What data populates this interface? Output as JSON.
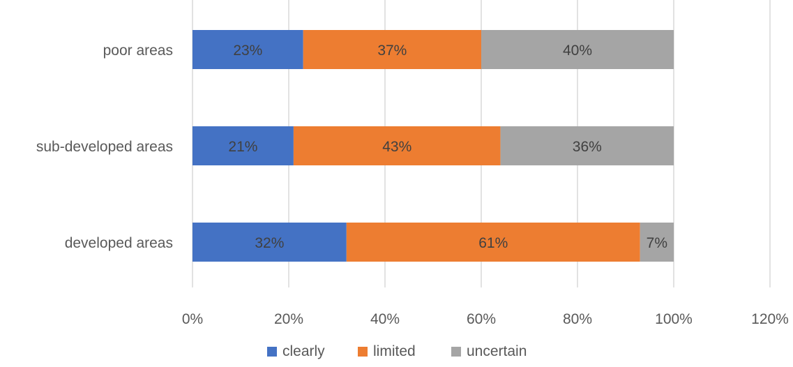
{
  "chart_data": {
    "type": "bar",
    "orientation": "horizontal",
    "stacked": true,
    "categories": [
      "poor areas",
      "sub-developed areas",
      "developed areas"
    ],
    "series": [
      {
        "name": "clearly",
        "color": "#4472C4",
        "values": [
          23,
          21,
          32
        ],
        "labels": [
          "23%",
          "21%",
          "32%"
        ]
      },
      {
        "name": "limited",
        "color": "#ED7D31",
        "values": [
          37,
          43,
          61
        ],
        "labels": [
          "37%",
          "43%",
          "61%"
        ]
      },
      {
        "name": "uncertain",
        "color": "#A5A5A5",
        "values": [
          40,
          36,
          7
        ],
        "labels": [
          "40%",
          "36%",
          "7%"
        ]
      }
    ],
    "xlim": [
      0,
      120
    ],
    "xticks": [
      0,
      20,
      40,
      60,
      80,
      100,
      120
    ],
    "xtick_labels": [
      "0%",
      "20%",
      "40%",
      "60%",
      "80%",
      "100%",
      "120%"
    ],
    "grid": "vertical",
    "legend_position": "bottom",
    "title": "",
    "xlabel": "",
    "ylabel": ""
  }
}
